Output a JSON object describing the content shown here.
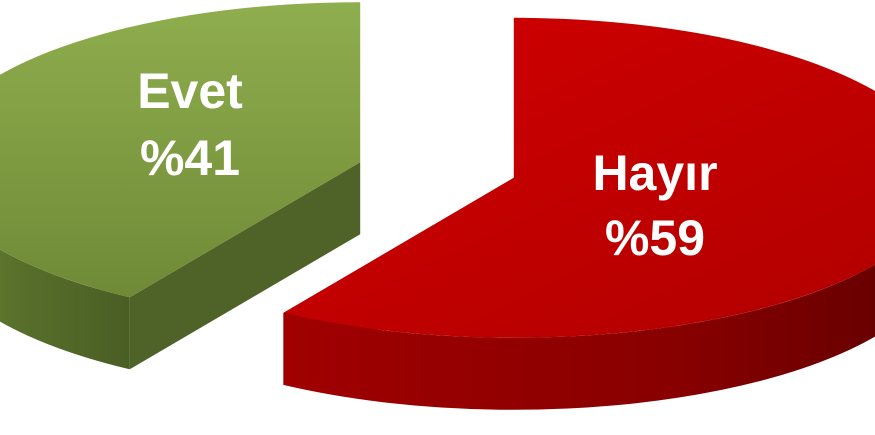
{
  "chart_data": {
    "type": "pie",
    "style": "3d-exploded",
    "slices": [
      {
        "label": "Evet",
        "value": 41,
        "value_label": "%41",
        "color": "#77933C",
        "side_color": "#4F6228"
      },
      {
        "label": "Hayır",
        "value": 59,
        "value_label": "%59",
        "color": "#C00000",
        "side_color": "#7A0000"
      }
    ],
    "legend": "none"
  }
}
